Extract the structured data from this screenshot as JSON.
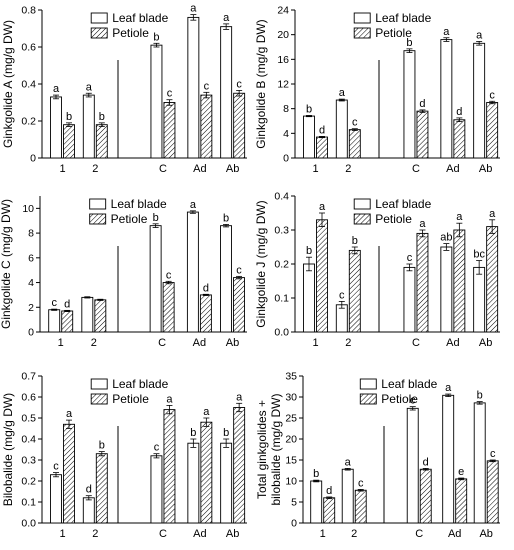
{
  "chart_data": [
    {
      "type": "bar",
      "ylabel": "Ginkgolide A (mg/g DW)",
      "categories": [
        "1",
        "2",
        "C",
        "Ad",
        "Ab"
      ],
      "ylim": [
        0,
        0.8
      ],
      "yticks": [
        "0",
        "0.2",
        "0.4",
        "0.6",
        "0.8"
      ],
      "ytick_values": [
        0,
        0.2,
        0.4,
        0.6,
        0.8
      ],
      "series": [
        {
          "name": "Leaf blade",
          "values": [
            0.33,
            0.34,
            0.61,
            0.76,
            0.71
          ],
          "errors": [
            0.01,
            0.01,
            0.01,
            0.015,
            0.015
          ],
          "labels": [
            "a",
            "a",
            "b",
            "a",
            "a"
          ]
        },
        {
          "name": "Petiole",
          "values": [
            0.18,
            0.18,
            0.3,
            0.34,
            0.35
          ],
          "errors": [
            0.01,
            0.01,
            0.015,
            0.015,
            0.015
          ],
          "labels": [
            "b",
            "b",
            "c",
            "c",
            "c"
          ]
        }
      ],
      "legend": [
        "Leaf blade",
        "Petiole"
      ]
    },
    {
      "type": "bar",
      "ylabel": "Ginkgolide B (mg/g DW)",
      "categories": [
        "1",
        "2",
        "C",
        "Ad",
        "Ab"
      ],
      "ylim": [
        0,
        24
      ],
      "yticks": [
        "0",
        "4",
        "8",
        "12",
        "16",
        "20",
        "24"
      ],
      "ytick_values": [
        0,
        4,
        8,
        12,
        16,
        20,
        24
      ],
      "series": [
        {
          "name": "Leaf blade",
          "values": [
            6.8,
            9.4,
            17.4,
            19.2,
            18.6
          ],
          "errors": [
            0.1,
            0.15,
            0.3,
            0.3,
            0.3
          ],
          "labels": [
            "b",
            "a",
            "b",
            "a",
            "a"
          ]
        },
        {
          "name": "Petiole",
          "values": [
            3.4,
            4.6,
            7.6,
            6.2,
            9.0
          ],
          "errors": [
            0.1,
            0.15,
            0.2,
            0.3,
            0.2
          ],
          "labels": [
            "d",
            "c",
            "d",
            "d",
            "c"
          ]
        }
      ],
      "legend": [
        "Leaf blade",
        "Petiole"
      ]
    },
    {
      "type": "bar",
      "ylabel": "Ginkgolide C (mg/g DW)",
      "categories": [
        "1",
        "2",
        "C",
        "Ad",
        "Ab"
      ],
      "ylim": [
        0,
        11
      ],
      "yticks": [
        "0",
        "2",
        "4",
        "6",
        "8",
        "10"
      ],
      "ytick_values": [
        0,
        2,
        4,
        6,
        8,
        10
      ],
      "series": [
        {
          "name": "Leaf blade",
          "values": [
            1.8,
            2.8,
            8.6,
            9.7,
            8.6
          ],
          "errors": [
            0.05,
            0.05,
            0.15,
            0.1,
            0.1
          ],
          "labels": [
            "c",
            "",
            "b",
            "a",
            "b"
          ]
        },
        {
          "name": "Petiole",
          "values": [
            1.7,
            2.6,
            4.0,
            3.0,
            4.4
          ],
          "errors": [
            0.05,
            0.05,
            0.1,
            0.05,
            0.1
          ],
          "labels": [
            "d",
            "",
            "c",
            "d",
            "c"
          ]
        }
      ],
      "legend": [
        "Leaf blade",
        "Petiole"
      ]
    },
    {
      "type": "bar",
      "ylabel": "Ginkgolide J (mg/g DW)",
      "categories": [
        "1",
        "2",
        "C",
        "Ad",
        "Ab"
      ],
      "ylim": [
        0,
        0.4
      ],
      "yticks": [
        "0.0",
        "0.1",
        "0.2",
        "0.3",
        "0.4"
      ],
      "ytick_values": [
        0,
        0.1,
        0.2,
        0.3,
        0.4
      ],
      "series": [
        {
          "name": "Leaf blade",
          "values": [
            0.2,
            0.08,
            0.19,
            0.25,
            0.19
          ],
          "errors": [
            0.02,
            0.01,
            0.01,
            0.01,
            0.02
          ],
          "labels": [
            "b",
            "c",
            "c",
            "ab",
            "bc"
          ]
        },
        {
          "name": "Petiole",
          "values": [
            0.33,
            0.24,
            0.29,
            0.3,
            0.31
          ],
          "errors": [
            0.02,
            0.01,
            0.01,
            0.02,
            0.02
          ],
          "labels": [
            "a",
            "b",
            "a",
            "a",
            "a"
          ]
        }
      ],
      "legend": [
        "Leaf blade",
        "Petiole"
      ]
    },
    {
      "type": "bar",
      "ylabel": "Bilobalide (mg/g DW)",
      "categories": [
        "1",
        "2",
        "C",
        "Ad",
        "Ab"
      ],
      "ylim": [
        0,
        0.7
      ],
      "yticks": [
        "0.0",
        "0.1",
        "0.2",
        "0.3",
        "0.4",
        "0.5",
        "0.6",
        "0.7"
      ],
      "ytick_values": [
        0,
        0.1,
        0.2,
        0.3,
        0.4,
        0.5,
        0.6,
        0.7
      ],
      "series": [
        {
          "name": "Leaf blade",
          "values": [
            0.23,
            0.12,
            0.32,
            0.38,
            0.38
          ],
          "errors": [
            0.01,
            0.01,
            0.01,
            0.02,
            0.02
          ],
          "labels": [
            "c",
            "d",
            "c",
            "b",
            "b"
          ]
        },
        {
          "name": "Petiole",
          "values": [
            0.47,
            0.33,
            0.54,
            0.48,
            0.55
          ],
          "errors": [
            0.02,
            0.01,
            0.02,
            0.02,
            0.02
          ],
          "labels": [
            "a",
            "b",
            "a",
            "a",
            "a"
          ]
        }
      ],
      "legend": [
        "Leaf blade",
        "Petiole"
      ]
    },
    {
      "type": "bar",
      "ylabel": "Total ginkgolides + bilobalide (mg/g DW)",
      "ylabel_lines": [
        "Total ginkgolides +",
        "bilobalide (mg/g DW)"
      ],
      "categories": [
        "1",
        "2",
        "C",
        "Ad",
        "Ab"
      ],
      "ylim": [
        0,
        35
      ],
      "yticks": [
        "0",
        "5",
        "10",
        "15",
        "20",
        "25",
        "30",
        "35"
      ],
      "ytick_values": [
        0,
        5,
        10,
        15,
        20,
        25,
        30,
        35
      ],
      "series": [
        {
          "name": "Leaf blade",
          "values": [
            10.0,
            12.8,
            27.3,
            30.4,
            28.6
          ],
          "errors": [
            0.2,
            0.2,
            0.4,
            0.3,
            0.3
          ],
          "labels": [
            "b",
            "a",
            "c",
            "a",
            "b"
          ]
        },
        {
          "name": "Petiole",
          "values": [
            6.0,
            7.8,
            12.8,
            10.5,
            14.8
          ],
          "errors": [
            0.2,
            0.2,
            0.2,
            0.2,
            0.2
          ],
          "labels": [
            "d",
            "c",
            "d",
            "e",
            "c"
          ]
        }
      ],
      "legend": [
        "Leaf blade",
        "Petiole"
      ]
    }
  ]
}
